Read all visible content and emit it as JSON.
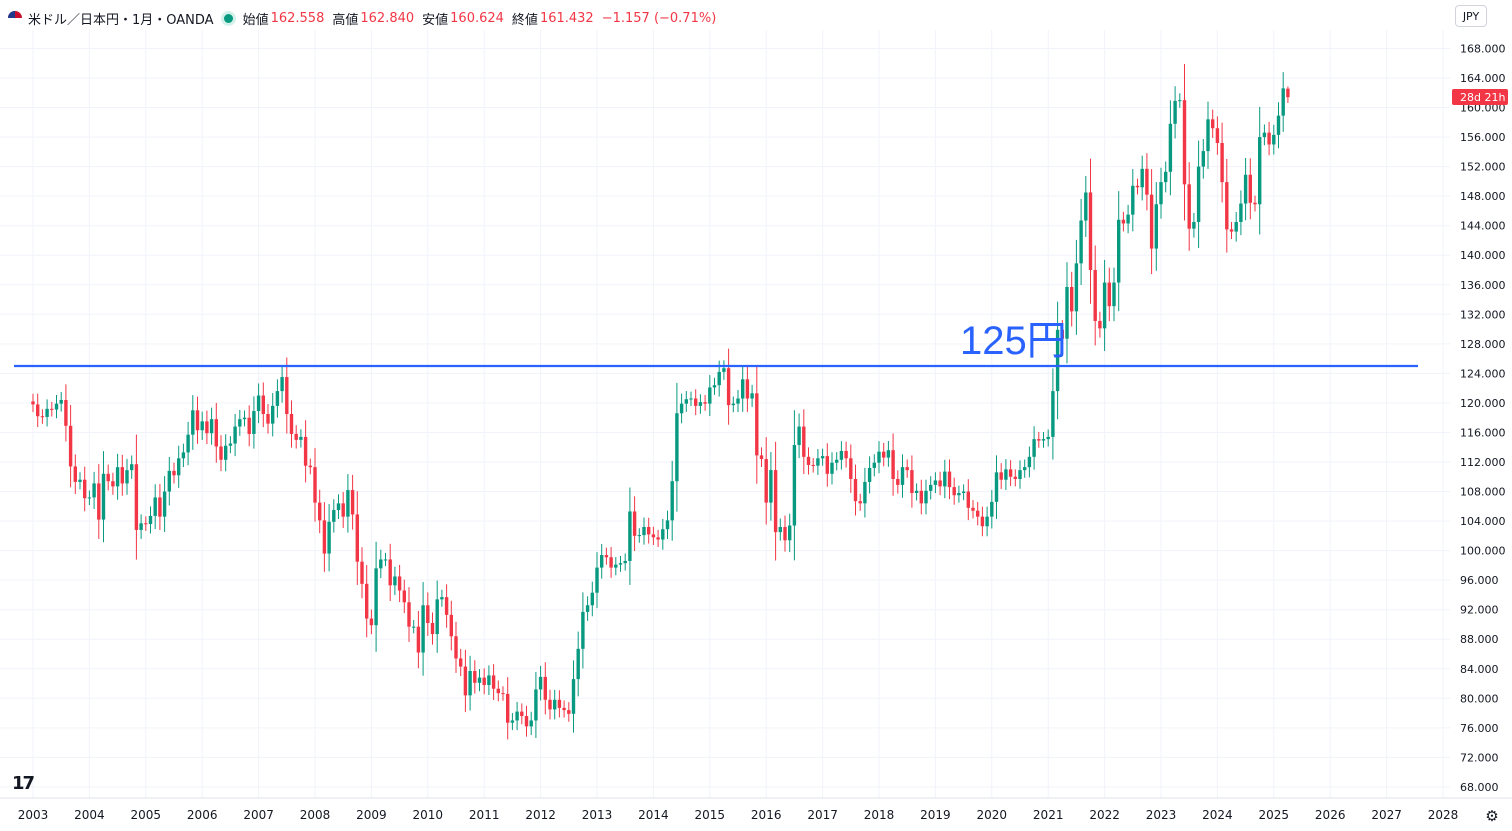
{
  "header": {
    "symbol": "米ドル／日本円・1月・OANDA",
    "open_label": "始値",
    "open": "162.558",
    "high_label": "高値",
    "high": "162.840",
    "low_label": "安値",
    "low": "160.624",
    "close_label": "終値",
    "close": "161.432",
    "change": "−1.157 (−0.71%)"
  },
  "currency_unit": "JPY",
  "countdown": "28d 21h",
  "colors": {
    "up": "#089981",
    "down": "#f23645",
    "line": "#2962ff",
    "grid": "#f0f3fa"
  },
  "chart_data": {
    "type": "candlestick",
    "title": "",
    "xlabel": "",
    "ylabel": "",
    "ylim": [
      66.5,
      170.5
    ],
    "yticks": [
      "168.000",
      "164.000",
      "160.000",
      "156.000",
      "152.000",
      "148.000",
      "144.000",
      "140.000",
      "136.000",
      "132.000",
      "128.000",
      "124.000",
      "120.000",
      "116.000",
      "112.000",
      "108.000",
      "104.000",
      "100.000",
      "96.000",
      "92.000",
      "88.000",
      "84.000",
      "80.000",
      "76.000",
      "72.000",
      "68.000"
    ],
    "xticks": [
      "2003",
      "2004",
      "2005",
      "2006",
      "2007",
      "2008",
      "2009",
      "2010",
      "2011",
      "2012",
      "2013",
      "2014",
      "2015",
      "2016",
      "2017",
      "2018",
      "2019",
      "2020",
      "2021",
      "2022",
      "2023",
      "2024",
      "2025",
      "2026",
      "2027",
      "2028"
    ],
    "x_start": "2003-01",
    "horizontal_line": {
      "value": 125,
      "label": "125円"
    },
    "close_series": [
      119.8,
      118.2,
      118.1,
      119.2,
      119.1,
      119.9,
      120.4,
      116.9,
      111.4,
      109.3,
      109.6,
      107.1,
      107.2,
      109.1,
      104.2,
      110.4,
      109.4,
      108.7,
      111.3,
      109.1,
      110.9,
      111.7,
      102.8,
      103.7,
      103.6,
      104.7,
      107.2,
      104.6,
      108.0,
      110.8,
      110.2,
      112.5,
      113.3,
      115.7,
      119.0,
      116.3,
      117.5,
      115.9,
      117.8,
      114.1,
      112.3,
      114.2,
      114.5,
      116.8,
      117.8,
      118.0,
      115.8,
      118.9,
      121.0,
      118.5,
      117.2,
      119.6,
      121.6,
      123.5,
      118.5,
      115.8,
      115.0,
      115.4,
      111.5,
      111.3,
      106.5,
      104.1,
      99.6,
      103.9,
      105.5,
      106.4,
      104.6,
      108.2,
      104.9,
      98.5,
      95.5,
      90.8,
      89.9,
      97.6,
      98.8,
      98.8,
      95.3,
      96.5,
      94.6,
      93.0,
      89.7,
      89.7,
      86.2,
      92.6,
      90.2,
      88.7,
      93.4,
      93.7,
      91.3,
      88.4,
      85.4,
      84.3,
      80.4,
      83.7,
      82.1,
      82.8,
      81.8,
      83.1,
      81.3,
      80.7,
      80.6,
      76.7,
      77.0,
      78.2,
      77.6,
      76.2,
      77.0,
      81.2,
      82.9,
      79.8,
      78.5,
      79.8,
      78.7,
      78.4,
      77.9,
      82.6,
      86.7,
      91.7,
      92.6,
      94.3,
      97.7,
      99.4,
      99.1,
      97.7,
      98.1,
      98.3,
      98.6,
      105.3,
      102.0,
      102.1,
      103.2,
      102.2,
      101.8,
      101.5,
      102.9,
      104.1,
      109.4,
      118.6,
      119.9,
      120.5,
      120.6,
      119.6,
      120.1,
      119.9,
      122.1,
      122.4,
      124.2,
      124.7,
      119.7,
      119.9,
      120.6,
      123.2,
      120.6,
      121.3,
      112.9,
      112.4,
      106.5,
      110.9,
      102.5,
      103.2,
      101.4,
      103.4,
      114.3,
      116.8,
      112.7,
      111.6,
      111.5,
      112.5,
      112.8,
      110.4,
      111.9,
      112.3,
      113.5,
      112.5,
      109.7,
      106.7,
      106.4,
      109.3,
      111.2,
      111.9,
      113.4,
      112.6,
      113.6,
      109.7,
      108.9,
      111.3,
      110.9,
      107.8,
      108.1,
      106.4,
      108.1,
      108.9,
      109.5,
      108.7,
      110.7,
      108.6,
      107.5,
      107.8,
      108.0,
      105.8,
      105.4,
      104.6,
      103.3,
      104.6,
      106.6,
      110.6,
      109.6,
      111.0,
      110.0,
      109.7,
      110.9,
      111.3,
      112.7,
      115.1,
      114.9,
      115.1,
      115.4,
      121.6,
      129.9,
      128.7,
      135.7,
      132.4,
      138.9,
      144.7,
      148.5,
      138.0,
      131.1,
      130.1,
      136.3,
      133.1,
      136.3,
      144.8,
      144.3,
      145.5,
      149.4,
      149.2,
      151.7,
      148.2,
      140.9,
      146.9,
      149.9,
      151.3,
      157.8,
      160.9,
      161.0,
      149.6,
      143.6,
      144.5,
      152.0,
      154.1,
      158.4,
      157.2,
      155.2,
      149.9,
      143.5,
      143.2,
      144.5,
      147.0,
      150.9,
      147.1,
      146.9,
      156.0,
      156.6,
      155.0,
      156.3,
      158.9,
      162.6,
      161.4
    ],
    "open": 162.558,
    "high": 162.84,
    "low": 160.624,
    "close": 161.432
  }
}
